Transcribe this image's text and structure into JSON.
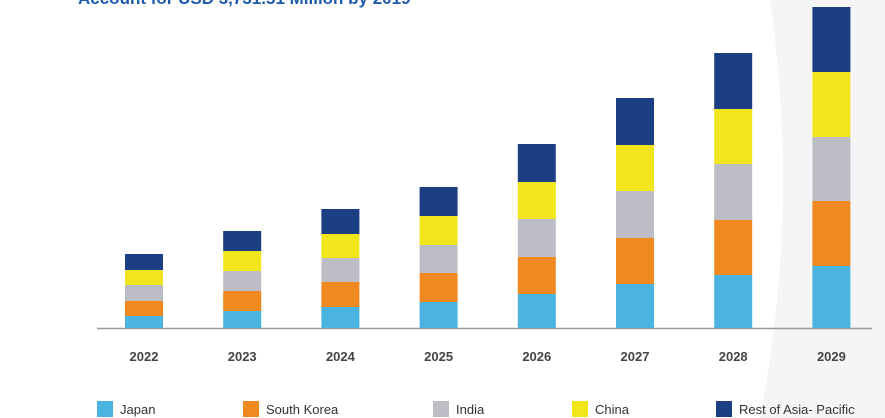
{
  "chart_data": {
    "type": "stacked_bar",
    "title": "Account for USD 3,731.51 Million by 2019",
    "categories": [
      "2022",
      "2023",
      "2024",
      "2025",
      "2026",
      "2027",
      "2028",
      "2029"
    ],
    "series": [
      {
        "name": "Japan",
        "color": "#4ab3e0",
        "values": [
          12,
          17,
          21,
          26,
          34,
          44,
          53,
          62
        ]
      },
      {
        "name": "South Korea",
        "color": "#f0891f",
        "values": [
          15,
          20,
          25,
          29,
          37,
          46,
          55,
          65
        ]
      },
      {
        "name": "India",
        "color": "#bdbdc5",
        "values": [
          16,
          20,
          24,
          28,
          38,
          47,
          56,
          64
        ]
      },
      {
        "name": "China",
        "color": "#f1e51c",
        "values": [
          15,
          20,
          24,
          29,
          37,
          46,
          55,
          65
        ]
      },
      {
        "name": "Rest of Asia- Pacific",
        "color": "#1c3f83",
        "values": [
          16,
          20,
          25,
          29,
          38,
          47,
          56,
          65
        ]
      }
    ],
    "ylim": [
      0,
      321
    ]
  }
}
